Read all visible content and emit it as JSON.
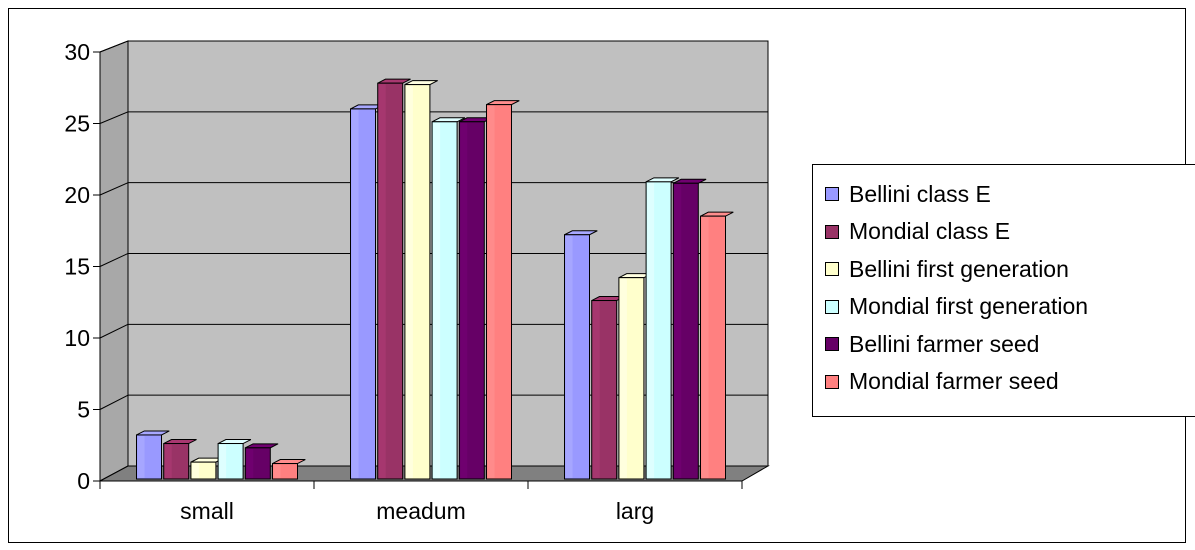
{
  "chart_data": {
    "type": "bar",
    "categories": [
      "small",
      "meadum",
      "larg"
    ],
    "yticks": [
      "0",
      "5",
      "10",
      "15",
      "20",
      "25",
      "30"
    ],
    "ylim": [
      0,
      30
    ],
    "grid": true,
    "legend_position": "right",
    "series": [
      {
        "name": "Bellini class E",
        "color": "#9999FF",
        "values": [
          3.5,
          26.3,
          17.5
        ]
      },
      {
        "name": "Mondial class E",
        "color": "#993366",
        "values": [
          2.9,
          28.1,
          12.9
        ]
      },
      {
        "name": "Bellini first generation",
        "color": "#FFFFCC",
        "values": [
          1.6,
          28.0,
          14.5
        ]
      },
      {
        "name": "Mondial first generation",
        "color": "#CCFFFF",
        "values": [
          2.9,
          25.4,
          21.2
        ]
      },
      {
        "name": "Bellini farmer seed",
        "color": "#660066",
        "values": [
          2.6,
          25.4,
          21.1
        ]
      },
      {
        "name": "Mondial farmer seed",
        "color": "#FF8080",
        "values": [
          1.5,
          26.6,
          18.8
        ]
      }
    ]
  },
  "colors": {
    "plot_wall": "#C0C0C0",
    "floor": "#808080",
    "gridline": "#000000"
  }
}
